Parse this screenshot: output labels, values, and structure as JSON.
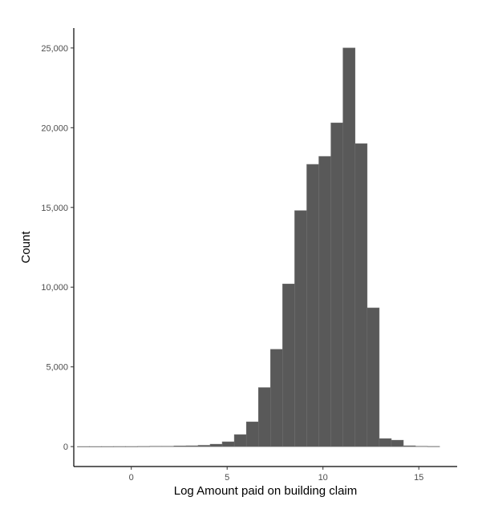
{
  "chart_data": {
    "type": "bar",
    "subtype": "histogram",
    "title": "",
    "xlabel": "Log Amount paid on building claim",
    "ylabel": "Count",
    "xlim": [
      -3,
      17
    ],
    "ylim": [
      -1250,
      26250
    ],
    "x_ticks": [
      0,
      5,
      10,
      15
    ],
    "x_tick_labels": [
      "0",
      "5",
      "10",
      "15"
    ],
    "y_ticks": [
      0,
      5000,
      10000,
      15000,
      20000,
      25000
    ],
    "y_tick_labels": [
      "0",
      "5,000",
      "10,000",
      "15,000",
      "20,000",
      "25,000"
    ],
    "bin_width": 0.63,
    "bin_centers": [
      -2.5,
      -1.87,
      -1.24,
      -0.61,
      0.02,
      0.65,
      1.28,
      1.91,
      2.54,
      3.17,
      3.8,
      4.43,
      5.06,
      5.69,
      6.32,
      6.95,
      7.58,
      8.21,
      8.84,
      9.47,
      10.1,
      10.73,
      11.36,
      11.99,
      12.62,
      13.25,
      13.88,
      14.51,
      15.14,
      15.77
    ],
    "values": [
      2,
      2,
      3,
      5,
      5,
      10,
      20,
      20,
      40,
      50,
      80,
      150,
      300,
      750,
      1550,
      3700,
      6100,
      10200,
      14800,
      17700,
      18200,
      20300,
      25000,
      19000,
      8700,
      500,
      400,
      50,
      20,
      10
    ],
    "bar_color": "#595959",
    "bar_edge_color": "#6e6e6e",
    "axis_color": "#000000",
    "grid": false,
    "legend": "none"
  }
}
